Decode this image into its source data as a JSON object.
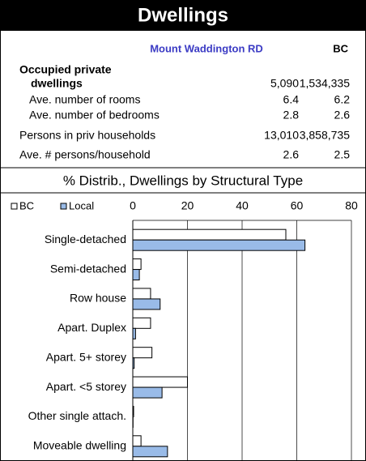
{
  "header": {
    "title": "Dwellings"
  },
  "table": {
    "columns": [
      "Mount Waddington RD",
      "BC"
    ],
    "rows": [
      {
        "label": [
          "Occupied private",
          "dwellings"
        ],
        "values": [
          "5,090",
          "1,534,335"
        ]
      },
      {
        "label": [
          "Ave. number of rooms"
        ],
        "values": [
          "6.4",
          "6.2"
        ]
      },
      {
        "label": [
          "Ave. number of bedrooms"
        ],
        "values": [
          "2.8",
          "2.6"
        ]
      },
      {
        "label": [
          "Persons in priv households"
        ],
        "values": [
          "13,010",
          "3,858,735"
        ]
      },
      {
        "label": [
          "Ave. # persons/household"
        ],
        "values": [
          "2.6",
          "2.5"
        ]
      }
    ]
  },
  "chart_data": {
    "type": "bar",
    "orientation": "horizontal",
    "title": "% Distrib., Dwellings by Structural Type",
    "categories": [
      "Single-detached",
      "Semi-detached",
      "Row house",
      "Apart. Duplex",
      "Apart. 5+ storey",
      "Apart. <5 storey",
      "Other single attach.",
      "Moveable dwelling"
    ],
    "series": [
      {
        "name": "BC",
        "color": "#ffffff",
        "values": [
          56,
          3,
          6.5,
          6.5,
          7,
          20,
          0.3,
          3
        ]
      },
      {
        "name": "Local",
        "color": "#99bbe8",
        "values": [
          63,
          2.4,
          10,
          1,
          0.5,
          10.7,
          0.1,
          12.7
        ]
      }
    ],
    "xlim": [
      0,
      80
    ],
    "xticks": [
      0,
      20,
      40,
      60,
      80
    ],
    "grid": true
  }
}
